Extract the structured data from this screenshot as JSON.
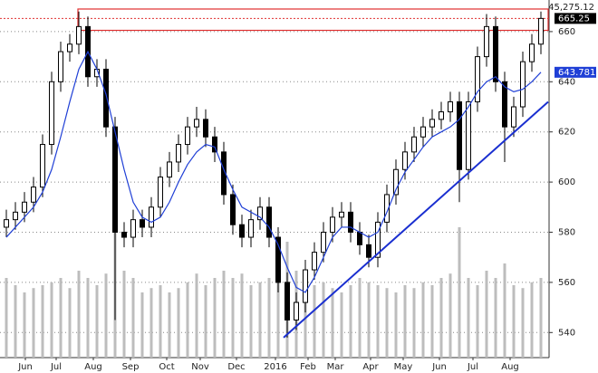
{
  "chart_data": {
    "type": "candlestick",
    "header_value": "45,275.12",
    "last_price": 665.25,
    "ma_last": 643.781,
    "xlim": [
      0,
      60
    ],
    "ylim": [
      530,
      672.6
    ],
    "yticks": [
      540,
      560,
      580,
      600,
      620,
      640,
      660
    ],
    "xticks": [
      {
        "value": 2.6,
        "label": "Jun"
      },
      {
        "value": 6,
        "label": "Jul"
      },
      {
        "value": 10.1,
        "label": "Aug"
      },
      {
        "value": 14.2,
        "label": "Sep"
      },
      {
        "value": 18.2,
        "label": "Oct"
      },
      {
        "value": 21.9,
        "label": "Nov"
      },
      {
        "value": 25.9,
        "label": "Dec"
      },
      {
        "value": 30.2,
        "label": "2016"
      },
      {
        "value": 33.8,
        "label": "Feb"
      },
      {
        "value": 36.8,
        "label": "Mar"
      },
      {
        "value": 40.7,
        "label": "Apr"
      },
      {
        "value": 44.3,
        "label": "May"
      },
      {
        "value": 48.3,
        "label": "Jun"
      },
      {
        "value": 52,
        "label": "Jul"
      },
      {
        "value": 56.1,
        "label": "Aug"
      }
    ],
    "grid": true,
    "candle_color": "#000000",
    "open": [
      582,
      585,
      588,
      592,
      598,
      615,
      640,
      652,
      655,
      662,
      642,
      645,
      622,
      580,
      578,
      585,
      582,
      590,
      602,
      608,
      615,
      622,
      625,
      618,
      612,
      595,
      583,
      578,
      585,
      590,
      578,
      560,
      545,
      552,
      565,
      572,
      580,
      586,
      588,
      580,
      575,
      570,
      584,
      595,
      605,
      612,
      618,
      622,
      625,
      628,
      632,
      605,
      632,
      650,
      662,
      640,
      622,
      630,
      648,
      655
    ],
    "high": [
      589,
      592,
      596,
      602,
      619,
      644,
      656,
      659,
      668,
      666,
      649,
      649,
      626,
      584,
      589,
      589,
      594,
      606,
      612,
      619,
      626,
      630,
      629,
      622,
      616,
      599,
      587,
      589,
      594,
      594,
      582,
      564,
      556,
      569,
      576,
      584,
      590,
      592,
      592,
      584,
      579,
      588,
      599,
      609,
      616,
      622,
      626,
      629,
      632,
      636,
      636,
      636,
      654,
      667,
      666,
      644,
      634,
      652,
      659,
      668
    ],
    "low": [
      578,
      581,
      584,
      588,
      594,
      611,
      636,
      648,
      651,
      638,
      638,
      618,
      545,
      574,
      574,
      578,
      578,
      586,
      598,
      604,
      611,
      618,
      614,
      608,
      591,
      579,
      574,
      574,
      581,
      574,
      556,
      538,
      541,
      548,
      561,
      568,
      576,
      582,
      576,
      571,
      566,
      566,
      580,
      591,
      601,
      608,
      614,
      618,
      621,
      624,
      592,
      601,
      628,
      646,
      636,
      608,
      618,
      626,
      644,
      651
    ],
    "close": [
      585,
      588,
      592,
      598,
      615,
      640,
      652,
      655,
      662,
      642,
      645,
      622,
      580,
      578,
      585,
      582,
      590,
      602,
      608,
      615,
      622,
      625,
      618,
      612,
      595,
      583,
      578,
      585,
      590,
      578,
      560,
      545,
      552,
      565,
      572,
      580,
      586,
      588,
      580,
      575,
      570,
      584,
      595,
      605,
      612,
      618,
      622,
      625,
      628,
      632,
      605,
      632,
      650,
      662,
      640,
      622,
      630,
      648,
      655,
      665.25
    ],
    "moving_average": {
      "color": "#1f3fd6",
      "values": [
        578,
        582,
        586,
        590,
        596,
        605,
        618,
        632,
        645,
        652,
        645,
        635,
        620,
        605,
        592,
        586,
        584,
        586,
        592,
        600,
        607,
        612,
        615,
        614,
        605,
        597,
        590,
        588,
        586,
        582,
        575,
        566,
        558,
        556,
        562,
        570,
        578,
        582,
        582,
        580,
        578,
        580,
        588,
        597,
        604,
        609,
        614,
        618,
        620,
        622,
        625,
        630,
        636,
        640,
        642,
        638,
        636,
        637,
        640,
        643.781
      ]
    },
    "volume": {
      "color": "#bdbdbd",
      "ylim": [
        0,
        100
      ],
      "values": [
        55,
        50,
        45,
        48,
        50,
        52,
        55,
        48,
        60,
        55,
        50,
        58,
        95,
        60,
        55,
        45,
        48,
        50,
        45,
        48,
        52,
        58,
        50,
        55,
        60,
        55,
        58,
        50,
        52,
        55,
        65,
        80,
        60,
        55,
        50,
        52,
        48,
        45,
        50,
        55,
        52,
        50,
        48,
        45,
        50,
        48,
        52,
        50,
        55,
        58,
        90,
        55,
        50,
        60,
        55,
        65,
        50,
        48,
        52,
        55
      ]
    },
    "trendline": {
      "color": "#1a2fd0",
      "x": [
        31.1,
        60.3
      ],
      "values": [
        538,
        632
      ]
    },
    "resistance_box": {
      "color": "#e03030",
      "x": [
        8.4,
        60.3
      ],
      "values": [
        660.5,
        669
      ]
    }
  }
}
